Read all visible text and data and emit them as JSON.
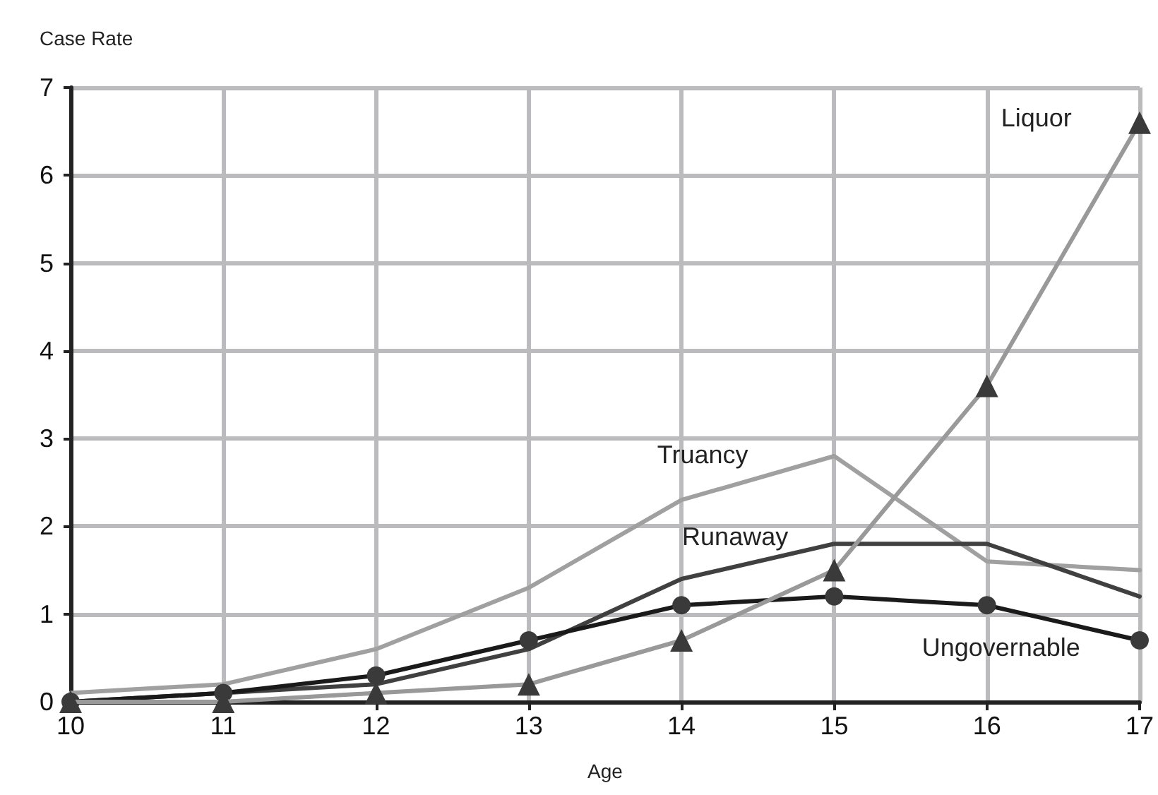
{
  "chart_data": {
    "type": "line",
    "xlabel": "Age",
    "ylabel": "Case Rate",
    "x": [
      10,
      11,
      12,
      13,
      14,
      15,
      16,
      17
    ],
    "series": [
      {
        "name": "Truancy",
        "color": "#a0a0a0",
        "marker": "none",
        "values": [
          0.1,
          0.2,
          0.6,
          1.3,
          2.3,
          2.8,
          1.6,
          1.5
        ]
      },
      {
        "name": "Runaway",
        "color": "#404040",
        "marker": "none",
        "values": [
          0,
          0.1,
          0.2,
          0.6,
          1.4,
          1.8,
          1.8,
          1.2
        ]
      },
      {
        "name": "Ungovernable",
        "color": "#1a1a1a",
        "marker": "circle",
        "values": [
          0,
          0.1,
          0.3,
          0.7,
          1.1,
          1.2,
          1.1,
          0.7
        ]
      },
      {
        "name": "Liquor",
        "color": "#999999",
        "marker": "triangle",
        "values": [
          0,
          0,
          0.1,
          0.2,
          0.7,
          1.5,
          3.6,
          6.6
        ]
      }
    ],
    "xlim": [
      10,
      17
    ],
    "xticks": [
      10,
      11,
      12,
      13,
      14,
      15,
      16,
      17
    ],
    "ylim": [
      0,
      7
    ],
    "yticks": [
      0,
      1,
      2,
      3,
      4,
      5,
      6,
      7
    ],
    "grid": true,
    "legend": false,
    "line_style": "solid"
  }
}
